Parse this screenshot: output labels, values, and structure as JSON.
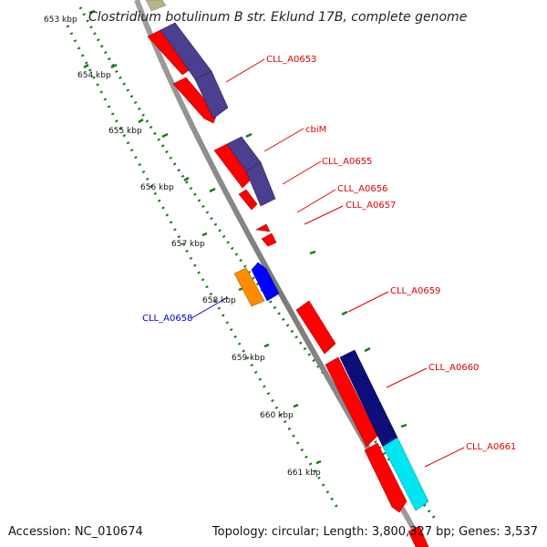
{
  "title": "Clostridium botulinum B str. Eklund 17B, complete genome",
  "footer": {
    "accession": "Accession: NC_010674",
    "summary": "Topology: circular; Length: 3,800,327 bp; Genes: 3,537"
  },
  "ticks": [
    "653 kbp",
    "654 kbp",
    "655 kbp",
    "656 kbp",
    "657 kbp",
    "658 kbp",
    "659 kbp",
    "660 kbp",
    "661 kbp"
  ],
  "gene_labels": [
    {
      "text": "CLL_A0653",
      "strand": "forward"
    },
    {
      "text": "cbiM",
      "strand": "forward"
    },
    {
      "text": "CLL_A0655",
      "strand": "forward"
    },
    {
      "text": "CLL_A0656",
      "strand": "forward"
    },
    {
      "text": "CLL_A0657",
      "strand": "forward"
    },
    {
      "text": "CLL_A0658",
      "strand": "reverse"
    },
    {
      "text": "CLL_A0659",
      "strand": "forward"
    },
    {
      "text": "CLL_A0660",
      "strand": "forward"
    },
    {
      "text": "CLL_A0661",
      "strand": "forward"
    }
  ],
  "colors": {
    "forward_label": "#e00000",
    "reverse_label": "#0000cc",
    "cds_red": "#ff0000",
    "purple": "#4b3f8f",
    "navy": "#0e0e7a",
    "cyan": "#00e5f0",
    "orange": "#ff8c00",
    "blue": "#0000ff",
    "olive": "#b8b48a",
    "backbone": "#808080",
    "tick_green": "#1a7a1a"
  }
}
